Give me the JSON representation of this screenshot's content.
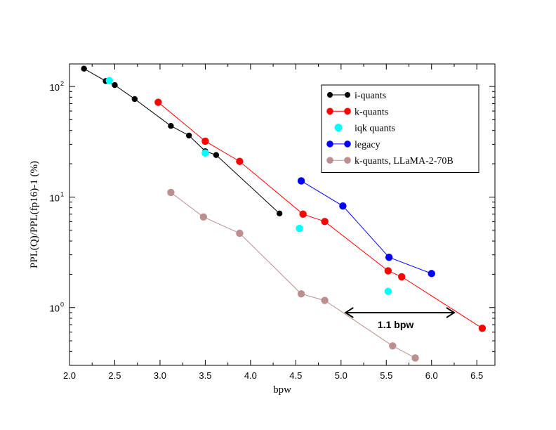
{
  "chart_data": {
    "type": "line",
    "xlabel": "bpw",
    "ylabel": "PPL(Q)/PPL(fp16)-1 (%)",
    "xlim": [
      2.0,
      6.7
    ],
    "ylim": [
      0.3,
      160
    ],
    "yscale": "log",
    "xticks": [
      "2.0",
      "2.5",
      "3.0",
      "3.5",
      "4.0",
      "4.5",
      "5.0",
      "5.5",
      "6.0",
      "6.5"
    ],
    "yticks": [
      {
        "base": "10",
        "exp": "0",
        "value": 1
      },
      {
        "base": "10",
        "exp": "1",
        "value": 10
      },
      {
        "base": "10",
        "exp": "2",
        "value": 100
      }
    ],
    "grid": false,
    "legend_position": "top-right",
    "series": [
      {
        "name": "i-quants",
        "color": "#000000",
        "connected": true,
        "marker": "small",
        "points": [
          [
            2.16,
            145
          ],
          [
            2.4,
            112
          ],
          [
            2.5,
            103
          ],
          [
            2.72,
            77
          ],
          [
            3.12,
            44
          ],
          [
            3.32,
            36
          ],
          [
            3.5,
            26
          ],
          [
            3.62,
            24
          ],
          [
            4.32,
            7.1
          ]
        ]
      },
      {
        "name": "k-quants",
        "color": "#ff0000",
        "connected": true,
        "marker": "large",
        "points": [
          [
            2.98,
            72
          ],
          [
            3.5,
            32
          ],
          [
            3.88,
            21
          ],
          [
            4.58,
            7.0
          ],
          [
            4.82,
            6.0
          ],
          [
            5.52,
            2.15
          ],
          [
            5.67,
            1.9
          ],
          [
            6.56,
            0.65
          ]
        ]
      },
      {
        "name": "iqk quants",
        "color": "#00ffff",
        "connected": false,
        "marker": "large",
        "points": [
          [
            2.44,
            113
          ],
          [
            3.5,
            25
          ],
          [
            4.54,
            5.2
          ],
          [
            5.52,
            1.4
          ]
        ]
      },
      {
        "name": "legacy",
        "color": "#0000ff",
        "connected": true,
        "marker": "large",
        "points": [
          [
            4.56,
            14
          ],
          [
            5.02,
            8.3
          ],
          [
            5.53,
            2.85
          ],
          [
            6.0,
            2.03
          ]
        ]
      },
      {
        "name": "k-quants, LLaMA-2-70B",
        "color": "#bc8f8f",
        "connected": true,
        "marker": "large",
        "points": [
          [
            3.12,
            11
          ],
          [
            3.48,
            6.6
          ],
          [
            3.88,
            4.7
          ],
          [
            4.56,
            1.33
          ],
          [
            4.82,
            1.16
          ],
          [
            5.57,
            0.45
          ],
          [
            5.82,
            0.35
          ]
        ]
      }
    ],
    "annotations": [
      {
        "text": "1.1 bpw",
        "x_from": 5.05,
        "x_to": 6.25,
        "y": 0.9
      }
    ]
  }
}
